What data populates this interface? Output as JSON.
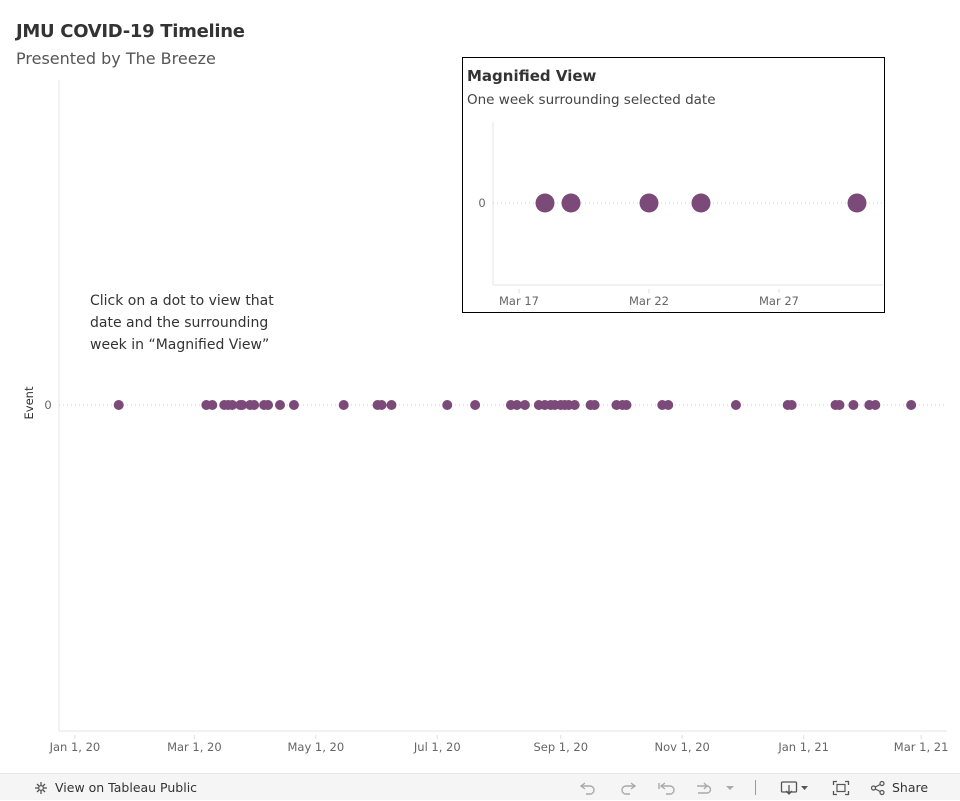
{
  "title": "JMU COVID-19 Timeline",
  "subtitle": "Presented by The Breeze",
  "annotation": "Click on a dot to view that date and the surrounding week in “Magnified View”",
  "chart_data": [
    {
      "type": "scatter",
      "title": "",
      "ylabel": "Event",
      "y_ticks": [
        "0"
      ],
      "x_ticks": [
        "Jan 1, 20",
        "Mar 1, 20",
        "May 1, 20",
        "Jul 1, 20",
        "Sep 1, 20",
        "Nov 1, 20",
        "Jan 1, 21",
        "Mar 1, 21"
      ],
      "xlim": [
        "2019-12-24",
        "2021-03-14"
      ],
      "series": [
        {
          "color": "#7b4a79",
          "x": [
            "2020-01-23",
            "2020-03-07",
            "2020-03-10",
            "2020-03-16",
            "2020-03-18",
            "2020-03-20",
            "2020-03-24",
            "2020-03-25",
            "2020-03-29",
            "2020-03-31",
            "2020-04-05",
            "2020-04-07",
            "2020-04-13",
            "2020-04-20",
            "2020-05-15",
            "2020-06-01",
            "2020-06-03",
            "2020-06-08",
            "2020-07-06",
            "2020-07-20",
            "2020-08-07",
            "2020-08-10",
            "2020-08-14",
            "2020-08-21",
            "2020-08-24",
            "2020-08-27",
            "2020-08-29",
            "2020-09-01",
            "2020-09-03",
            "2020-09-05",
            "2020-09-08",
            "2020-09-16",
            "2020-09-18",
            "2020-09-29",
            "2020-10-02",
            "2020-10-04",
            "2020-10-22",
            "2020-10-25",
            "2020-11-28",
            "2020-12-24",
            "2020-12-26",
            "2021-01-17",
            "2021-01-19",
            "2021-01-26",
            "2021-02-03",
            "2021-02-06",
            "2021-02-24"
          ],
          "y": [
            0,
            0,
            0,
            0,
            0,
            0,
            0,
            0,
            0,
            0,
            0,
            0,
            0,
            0,
            0,
            0,
            0,
            0,
            0,
            0,
            0,
            0,
            0,
            0,
            0,
            0,
            0,
            0,
            0,
            0,
            0,
            0,
            0,
            0,
            0,
            0,
            0,
            0,
            0,
            0,
            0,
            0,
            0,
            0,
            0,
            0,
            0
          ]
        }
      ]
    },
    {
      "type": "scatter",
      "title": "Magnified View",
      "subtitle": "One week surrounding selected date",
      "y_ticks": [
        "0"
      ],
      "x_ticks": [
        "Mar 17",
        "Mar 22",
        "Mar 27"
      ],
      "xlim": [
        "2020-03-16",
        "2020-03-31"
      ],
      "series": [
        {
          "color": "#7b4a79",
          "x": [
            "2020-03-18",
            "2020-03-19",
            "2020-03-22",
            "2020-03-24",
            "2020-03-30"
          ],
          "y": [
            0,
            0,
            0,
            0,
            0
          ]
        }
      ]
    }
  ],
  "toolbar": {
    "view_label": "View on Tableau Public",
    "share_label": "Share",
    "icons": [
      "tableau-icon",
      "undo-icon",
      "redo-icon",
      "revert-icon",
      "forward-icon",
      "dropdown-icon",
      "download-icon",
      "fullscreen-icon",
      "share-icon"
    ]
  }
}
